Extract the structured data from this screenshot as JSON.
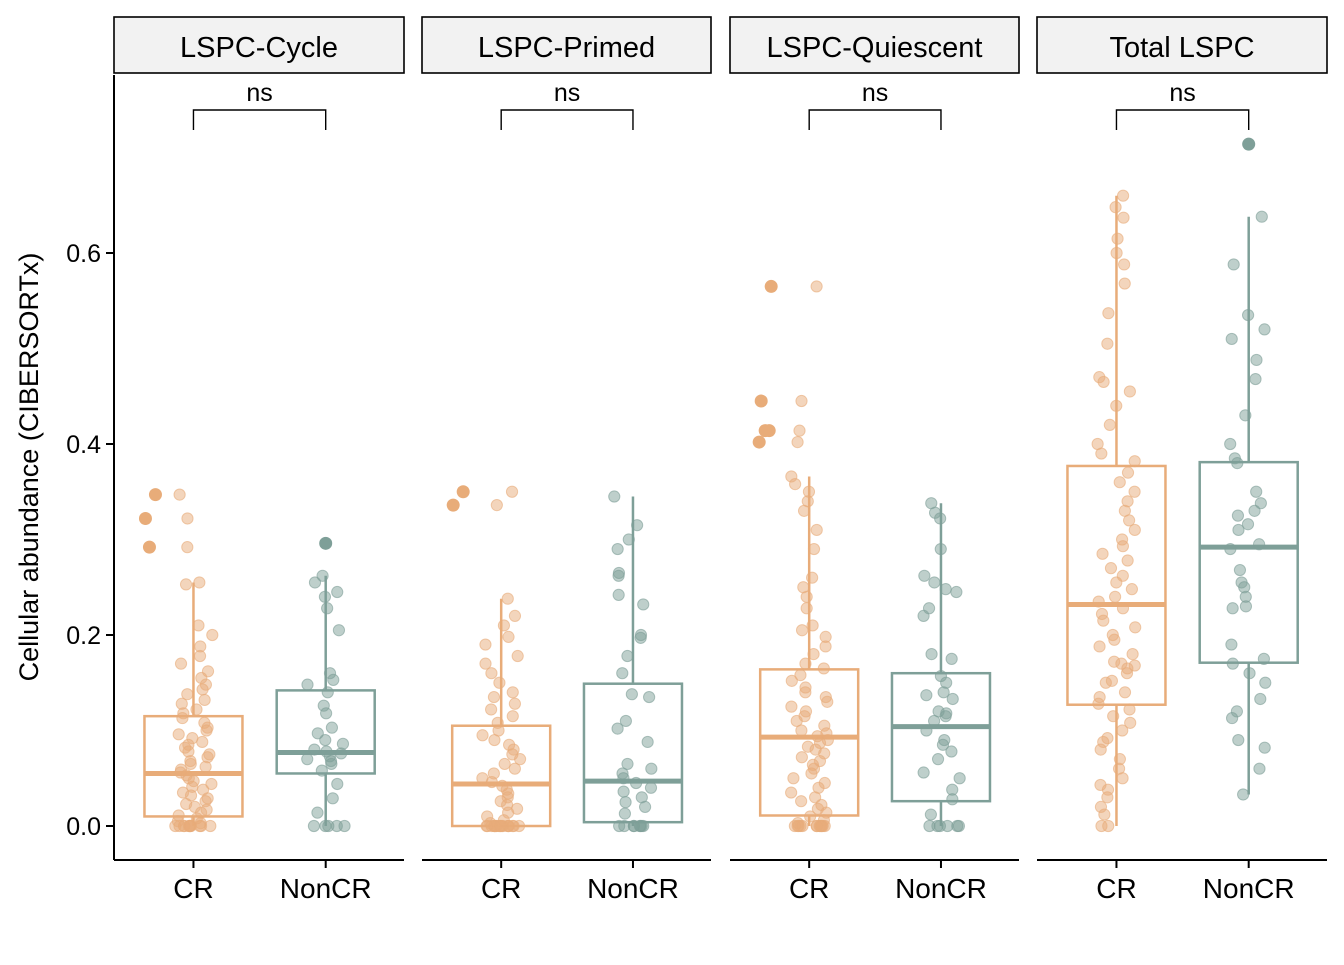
{
  "chart_data": {
    "type": "box",
    "ylabel": "Cellular abundance (CIBERSORTx)",
    "xlabel": "",
    "ylim": [
      -0.035,
      0.78
    ],
    "yticks": [
      0.0,
      0.2,
      0.4,
      0.6
    ],
    "ytick_labels": [
      "0.0",
      "0.2",
      "0.4",
      "0.6"
    ],
    "categories": [
      "CR",
      "NonCR"
    ],
    "colors": {
      "CR": "#E8AC79",
      "NonCR": "#7E9F98"
    },
    "grid": false,
    "legend": "none",
    "facets": [
      {
        "title": "LSPC-Cycle",
        "significance": "ns",
        "groups": [
          {
            "name": "CR",
            "box": {
              "q1": 0.01,
              "median": 0.055,
              "q3": 0.115,
              "whisker_low": 0.0,
              "whisker_high": 0.255
            },
            "outliers": [
              0.347,
              0.347,
              0.322,
              0.322,
              0.292,
              0.292
            ],
            "points": [
              0.255,
              0.253,
              0.21,
              0.2,
              0.188,
              0.178,
              0.17,
              0.162,
              0.155,
              0.148,
              0.143,
              0.138,
              0.132,
              0.128,
              0.122,
              0.118,
              0.113,
              0.108,
              0.103,
              0.1,
              0.096,
              0.092,
              0.088,
              0.085,
              0.082,
              0.078,
              0.075,
              0.072,
              0.068,
              0.065,
              0.062,
              0.059,
              0.056,
              0.053,
              0.05,
              0.047,
              0.044,
              0.041,
              0.038,
              0.035,
              0.032,
              0.029,
              0.026,
              0.023,
              0.02,
              0.017,
              0.014,
              0.011,
              0.008,
              0.005,
              0.003,
              0.0,
              0.0,
              0.0,
              0.0,
              0.0,
              0.0,
              0.0,
              0.0,
              0.0,
              0.0,
              0.0,
              0.0
            ]
          },
          {
            "name": "NonCR",
            "box": {
              "q1": 0.055,
              "median": 0.077,
              "q3": 0.142,
              "whisker_low": 0.0,
              "whisker_high": 0.262
            },
            "outliers": [
              0.296
            ],
            "points": [
              0.262,
              0.255,
              0.245,
              0.24,
              0.228,
              0.205,
              0.16,
              0.153,
              0.148,
              0.14,
              0.126,
              0.118,
              0.103,
              0.097,
              0.09,
              0.086,
              0.08,
              0.078,
              0.076,
              0.073,
              0.07,
              0.068,
              0.065,
              0.058,
              0.044,
              0.029,
              0.014,
              0.0,
              0.0,
              0.0,
              0.0,
              0.0
            ]
          }
        ]
      },
      {
        "title": "LSPC-Primed",
        "significance": "ns",
        "groups": [
          {
            "name": "CR",
            "box": {
              "q1": 0.0,
              "median": 0.044,
              "q3": 0.105,
              "whisker_low": 0.0,
              "whisker_high": 0.238
            },
            "outliers": [
              0.35,
              0.35,
              0.336,
              0.336
            ],
            "points": [
              0.238,
              0.22,
              0.21,
              0.198,
              0.19,
              0.178,
              0.17,
              0.16,
              0.15,
              0.14,
              0.135,
              0.128,
              0.122,
              0.115,
              0.108,
              0.1,
              0.095,
              0.09,
              0.085,
              0.08,
              0.075,
              0.07,
              0.065,
              0.06,
              0.055,
              0.05,
              0.046,
              0.042,
              0.038,
              0.034,
              0.03,
              0.026,
              0.022,
              0.018,
              0.014,
              0.01,
              0.006,
              0.003,
              0.0,
              0.0,
              0.0,
              0.0,
              0.0,
              0.0,
              0.0,
              0.0,
              0.0,
              0.0,
              0.0,
              0.0,
              0.0,
              0.0,
              0.0,
              0.0,
              0.0,
              0.0,
              0.0
            ]
          },
          {
            "name": "NonCR",
            "box": {
              "q1": 0.004,
              "median": 0.047,
              "q3": 0.149,
              "whisker_low": 0.0,
              "whisker_high": 0.345
            },
            "outliers": [],
            "points": [
              0.345,
              0.315,
              0.3,
              0.29,
              0.265,
              0.262,
              0.242,
              0.232,
              0.2,
              0.197,
              0.178,
              0.16,
              0.138,
              0.135,
              0.11,
              0.102,
              0.088,
              0.065,
              0.06,
              0.055,
              0.05,
              0.045,
              0.04,
              0.036,
              0.03,
              0.025,
              0.02,
              0.013,
              0.0,
              0.0,
              0.0,
              0.0,
              0.0,
              0.0,
              0.0,
              0.0
            ]
          }
        ]
      },
      {
        "title": "LSPC-Quiescent",
        "significance": "ns",
        "groups": [
          {
            "name": "CR",
            "box": {
              "q1": 0.011,
              "median": 0.093,
              "q3": 0.164,
              "whisker_low": 0.0,
              "whisker_high": 0.366
            },
            "outliers": [
              0.565,
              0.565,
              0.445,
              0.445,
              0.414,
              0.414,
              0.414,
              0.402,
              0.402
            ],
            "points": [
              0.366,
              0.358,
              0.35,
              0.34,
              0.33,
              0.31,
              0.29,
              0.26,
              0.25,
              0.24,
              0.228,
              0.21,
              0.205,
              0.198,
              0.188,
              0.18,
              0.17,
              0.165,
              0.158,
              0.152,
              0.145,
              0.14,
              0.135,
              0.13,
              0.125,
              0.12,
              0.115,
              0.11,
              0.105,
              0.1,
              0.097,
              0.094,
              0.09,
              0.087,
              0.083,
              0.08,
              0.076,
              0.072,
              0.068,
              0.064,
              0.06,
              0.055,
              0.05,
              0.045,
              0.04,
              0.035,
              0.03,
              0.026,
              0.022,
              0.018,
              0.014,
              0.01,
              0.006,
              0.003,
              0.0,
              0.0,
              0.0,
              0.0,
              0.0,
              0.0,
              0.0,
              0.0,
              0.0,
              0.0,
              0.0,
              0.0,
              0.0
            ]
          },
          {
            "name": "NonCR",
            "box": {
              "q1": 0.026,
              "median": 0.104,
              "q3": 0.16,
              "whisker_low": 0.0,
              "whisker_high": 0.338
            },
            "outliers": [],
            "points": [
              0.338,
              0.328,
              0.322,
              0.29,
              0.262,
              0.255,
              0.248,
              0.245,
              0.228,
              0.22,
              0.18,
              0.175,
              0.157,
              0.15,
              0.14,
              0.137,
              0.133,
              0.12,
              0.118,
              0.115,
              0.11,
              0.1,
              0.09,
              0.085,
              0.078,
              0.07,
              0.056,
              0.05,
              0.038,
              0.028,
              0.012,
              0.0,
              0.0,
              0.0,
              0.0,
              0.0,
              0.0
            ]
          }
        ]
      },
      {
        "title": "Total LSPC",
        "significance": "ns",
        "groups": [
          {
            "name": "CR",
            "box": {
              "q1": 0.127,
              "median": 0.232,
              "q3": 0.377,
              "whisker_low": 0.0,
              "whisker_high": 0.66
            },
            "outliers": [],
            "points": [
              0.66,
              0.648,
              0.637,
              0.615,
              0.6,
              0.588,
              0.568,
              0.537,
              0.505,
              0.47,
              0.465,
              0.455,
              0.44,
              0.42,
              0.4,
              0.39,
              0.382,
              0.37,
              0.36,
              0.35,
              0.34,
              0.33,
              0.32,
              0.31,
              0.3,
              0.293,
              0.285,
              0.278,
              0.27,
              0.262,
              0.255,
              0.248,
              0.24,
              0.235,
              0.228,
              0.222,
              0.215,
              0.208,
              0.2,
              0.195,
              0.188,
              0.18,
              0.172,
              0.17,
              0.168,
              0.165,
              0.16,
              0.152,
              0.15,
              0.14,
              0.135,
              0.128,
              0.122,
              0.115,
              0.108,
              0.1,
              0.092,
              0.088,
              0.08,
              0.07,
              0.06,
              0.05,
              0.043,
              0.038,
              0.03,
              0.02,
              0.012,
              0.0,
              0.0
            ]
          },
          {
            "name": "NonCR",
            "box": {
              "q1": 0.171,
              "median": 0.292,
              "q3": 0.381,
              "whisker_low": 0.033,
              "whisker_high": 0.638
            },
            "outliers": [
              0.714
            ],
            "points": [
              0.638,
              0.588,
              0.535,
              0.52,
              0.51,
              0.488,
              0.468,
              0.43,
              0.4,
              0.385,
              0.38,
              0.35,
              0.338,
              0.33,
              0.325,
              0.316,
              0.31,
              0.295,
              0.29,
              0.268,
              0.255,
              0.25,
              0.24,
              0.23,
              0.228,
              0.19,
              0.175,
              0.17,
              0.16,
              0.15,
              0.133,
              0.12,
              0.113,
              0.09,
              0.082,
              0.06,
              0.033
            ]
          }
        ]
      }
    ]
  }
}
